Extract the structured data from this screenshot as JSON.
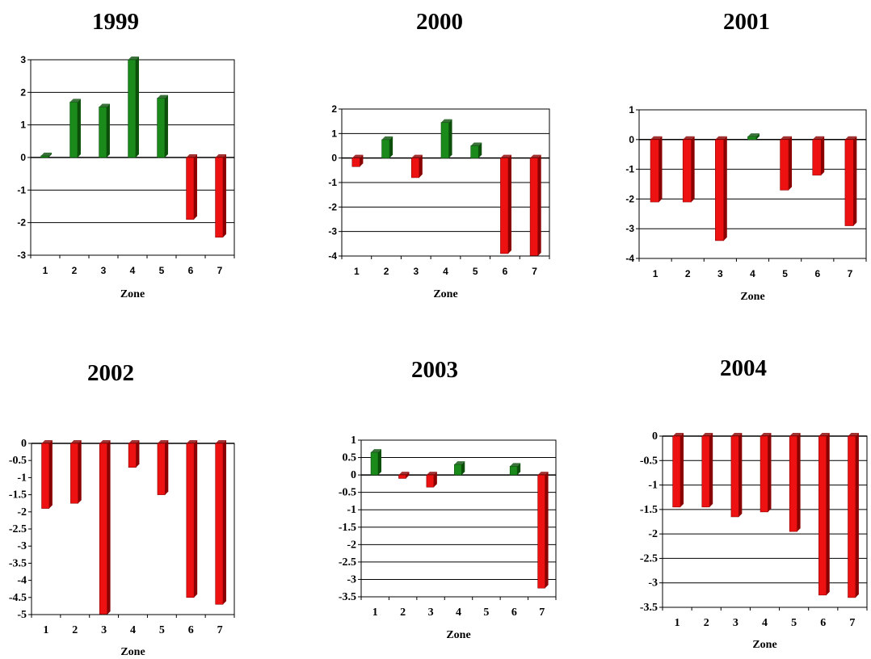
{
  "colors": {
    "positive": "#1a8a1a",
    "negative": "#ee1111"
  },
  "chart_data": [
    {
      "type": "bar",
      "title": "1999",
      "xlabel": "Zone",
      "ylabel": "",
      "categories": [
        "1",
        "2",
        "3",
        "4",
        "5",
        "6",
        "7"
      ],
      "values": [
        0.05,
        1.7,
        1.55,
        3.0,
        1.82,
        -1.9,
        -2.45
      ],
      "ylim": [
        -3,
        3
      ],
      "yticks": [
        "3",
        "2",
        "1",
        "0",
        "-1",
        "-2",
        "-3"
      ],
      "grid": true,
      "legend": "none"
    },
    {
      "type": "bar",
      "title": "2000",
      "xlabel": "Zone",
      "ylabel": "",
      "categories": [
        "1",
        "2",
        "3",
        "4",
        "5",
        "6",
        "7"
      ],
      "values": [
        -0.35,
        0.75,
        -0.8,
        1.45,
        0.5,
        -3.9,
        -4.0
      ],
      "ylim": [
        -4,
        2
      ],
      "yticks": [
        "2",
        "1",
        "0",
        "-1",
        "-2",
        "-3",
        "-4"
      ],
      "grid": true,
      "legend": "none"
    },
    {
      "type": "bar",
      "title": "2001",
      "xlabel": "Zone",
      "ylabel": "",
      "categories": [
        "1",
        "2",
        "3",
        "4",
        "5",
        "6",
        "7"
      ],
      "values": [
        -2.1,
        -2.1,
        -3.4,
        0.1,
        -1.7,
        -1.2,
        -2.9
      ],
      "ylim": [
        -4,
        1
      ],
      "yticks": [
        "1",
        "0",
        "-1",
        "-2",
        "-3",
        "-4"
      ],
      "grid": true,
      "legend": "none"
    },
    {
      "type": "bar",
      "title": "2002",
      "xlabel": "Zone",
      "ylabel": "",
      "categories": [
        "1",
        "2",
        "3",
        "4",
        "5",
        "6",
        "7"
      ],
      "values": [
        -1.9,
        -1.75,
        -5.0,
        -0.7,
        -1.5,
        -4.5,
        -4.7
      ],
      "ylim": [
        -5,
        0
      ],
      "yticks": [
        "0",
        "-0.5",
        "-1",
        "-1.5",
        "-2",
        "-2.5",
        "-3",
        "-3.5",
        "-4",
        "-4.5",
        "-5"
      ],
      "grid": false,
      "legend": "none"
    },
    {
      "type": "bar",
      "title": "2003",
      "xlabel": "Zone",
      "ylabel": "",
      "categories": [
        "1",
        "2",
        "3",
        "4",
        "5",
        "6",
        "7"
      ],
      "values": [
        0.65,
        -0.1,
        -0.35,
        0.3,
        0.0,
        0.25,
        -3.25
      ],
      "ylim": [
        -3.5,
        1
      ],
      "yticks": [
        "1",
        "0.5",
        "0",
        "-0.5",
        "-1",
        "-1.5",
        "-2",
        "-2.5",
        "-3",
        "-3.5"
      ],
      "grid": true,
      "legend": "none"
    },
    {
      "type": "bar",
      "title": "2004",
      "xlabel": "Zone",
      "ylabel": "",
      "categories": [
        "1",
        "2",
        "3",
        "4",
        "5",
        "6",
        "7"
      ],
      "values": [
        -1.45,
        -1.45,
        -1.65,
        -1.55,
        -1.95,
        -3.25,
        -3.3
      ],
      "ylim": [
        -3.5,
        0
      ],
      "yticks": [
        "0",
        "-0.5",
        "-1",
        "-1.5",
        "-2",
        "-2.5",
        "-3",
        "-3.5"
      ],
      "grid": true,
      "legend": "none"
    }
  ]
}
